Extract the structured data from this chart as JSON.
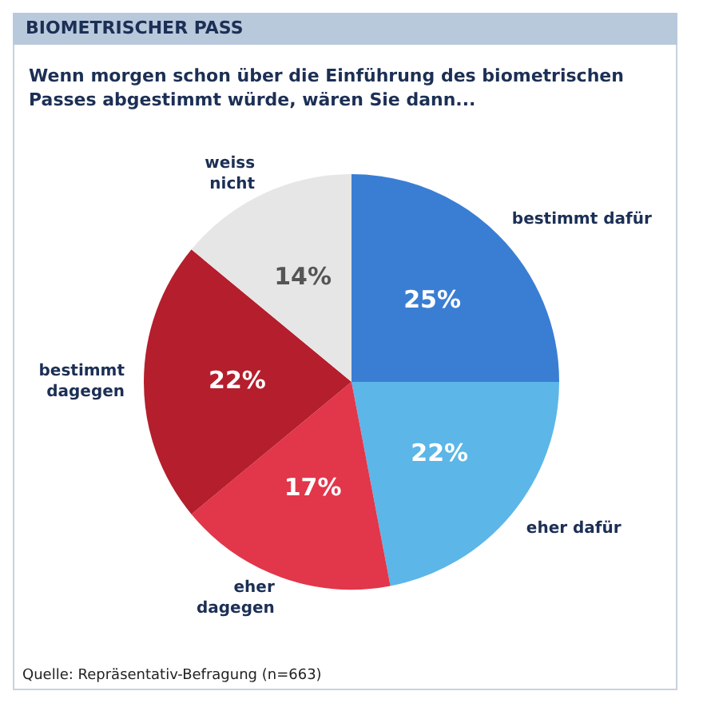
{
  "chart_data": {
    "type": "pie",
    "title": "BIOMETRISCHER PASS",
    "subtitle": "Wenn morgen schon über die Einführung des biometrischen Passes abgestimmt würde, wären Sie dann...",
    "categories": [
      "bestimmt dafür",
      "eher dafür",
      "eher dagegen",
      "bestimmt dagegen",
      "weiss nicht"
    ],
    "values": [
      25,
      22,
      17,
      22,
      14
    ],
    "colors": [
      "#3a7ed4",
      "#5cb6e8",
      "#e2364a",
      "#b51e2c",
      "#e6e6e6"
    ],
    "value_labels": [
      "25%",
      "22%",
      "17%",
      "22%",
      "14%"
    ],
    "legend": false,
    "annotations": [
      "Quelle: Repräsentativ-Befragung (n=663)"
    ]
  }
}
